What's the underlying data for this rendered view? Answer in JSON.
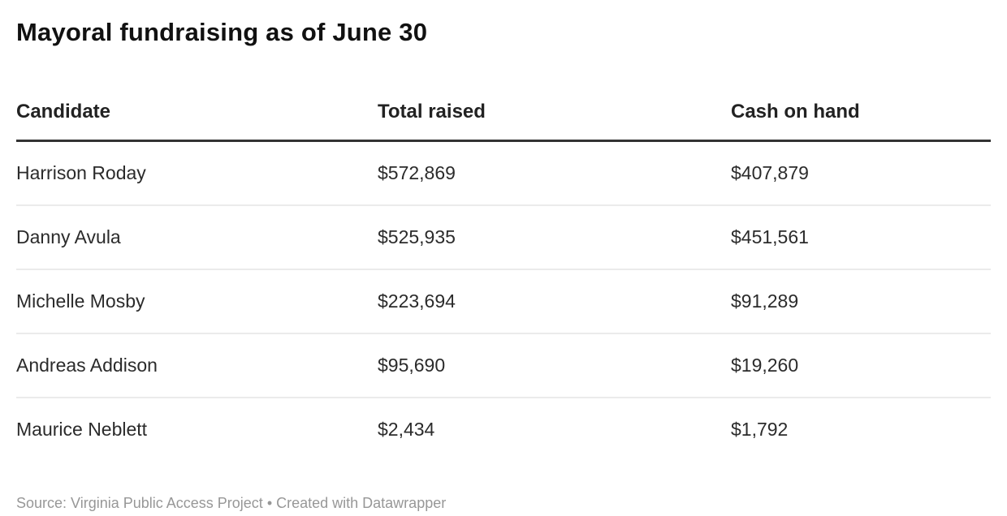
{
  "title": "Mayoral fundraising as of June 30",
  "table": {
    "columns": [
      {
        "label": "Candidate"
      },
      {
        "label": "Total raised"
      },
      {
        "label": "Cash on hand"
      }
    ],
    "rows": [
      {
        "cells": [
          "Harrison Roday",
          "$572,869",
          "$407,879"
        ]
      },
      {
        "cells": [
          "Danny Avula",
          "$525,935",
          "$451,561"
        ]
      },
      {
        "cells": [
          "Michelle Mosby",
          "$223,694",
          "$91,289"
        ]
      },
      {
        "cells": [
          "Andreas Addison",
          "$95,690",
          "$19,260"
        ]
      },
      {
        "cells": [
          "Maurice Neblett",
          "$2,434",
          "$1,792"
        ]
      }
    ]
  },
  "footer": {
    "text": "Source: Virginia Public Access Project • Created with Datawrapper"
  },
  "colors": {
    "title_text": "#111111",
    "header_text": "#222222",
    "cell_text": "#2b2b2b",
    "header_border": "#333333",
    "row_divider": "#ebebeb",
    "footer_text": "#979797",
    "background": "#ffffff"
  },
  "chart_data": {
    "type": "table",
    "title": "Mayoral fundraising as of June 30",
    "columns": [
      "Candidate",
      "Total raised",
      "Cash on hand"
    ],
    "rows": [
      [
        "Harrison Roday",
        572869,
        407879
      ],
      [
        "Danny Avula",
        525935,
        451561
      ],
      [
        "Michelle Mosby",
        223694,
        91289
      ],
      [
        "Andreas Addison",
        95690,
        19260
      ],
      [
        "Maurice Neblett",
        2434,
        1792
      ]
    ],
    "value_format": "USD, thousands separator, no decimals",
    "source": "Virginia Public Access Project",
    "attribution": "Created with Datawrapper"
  }
}
